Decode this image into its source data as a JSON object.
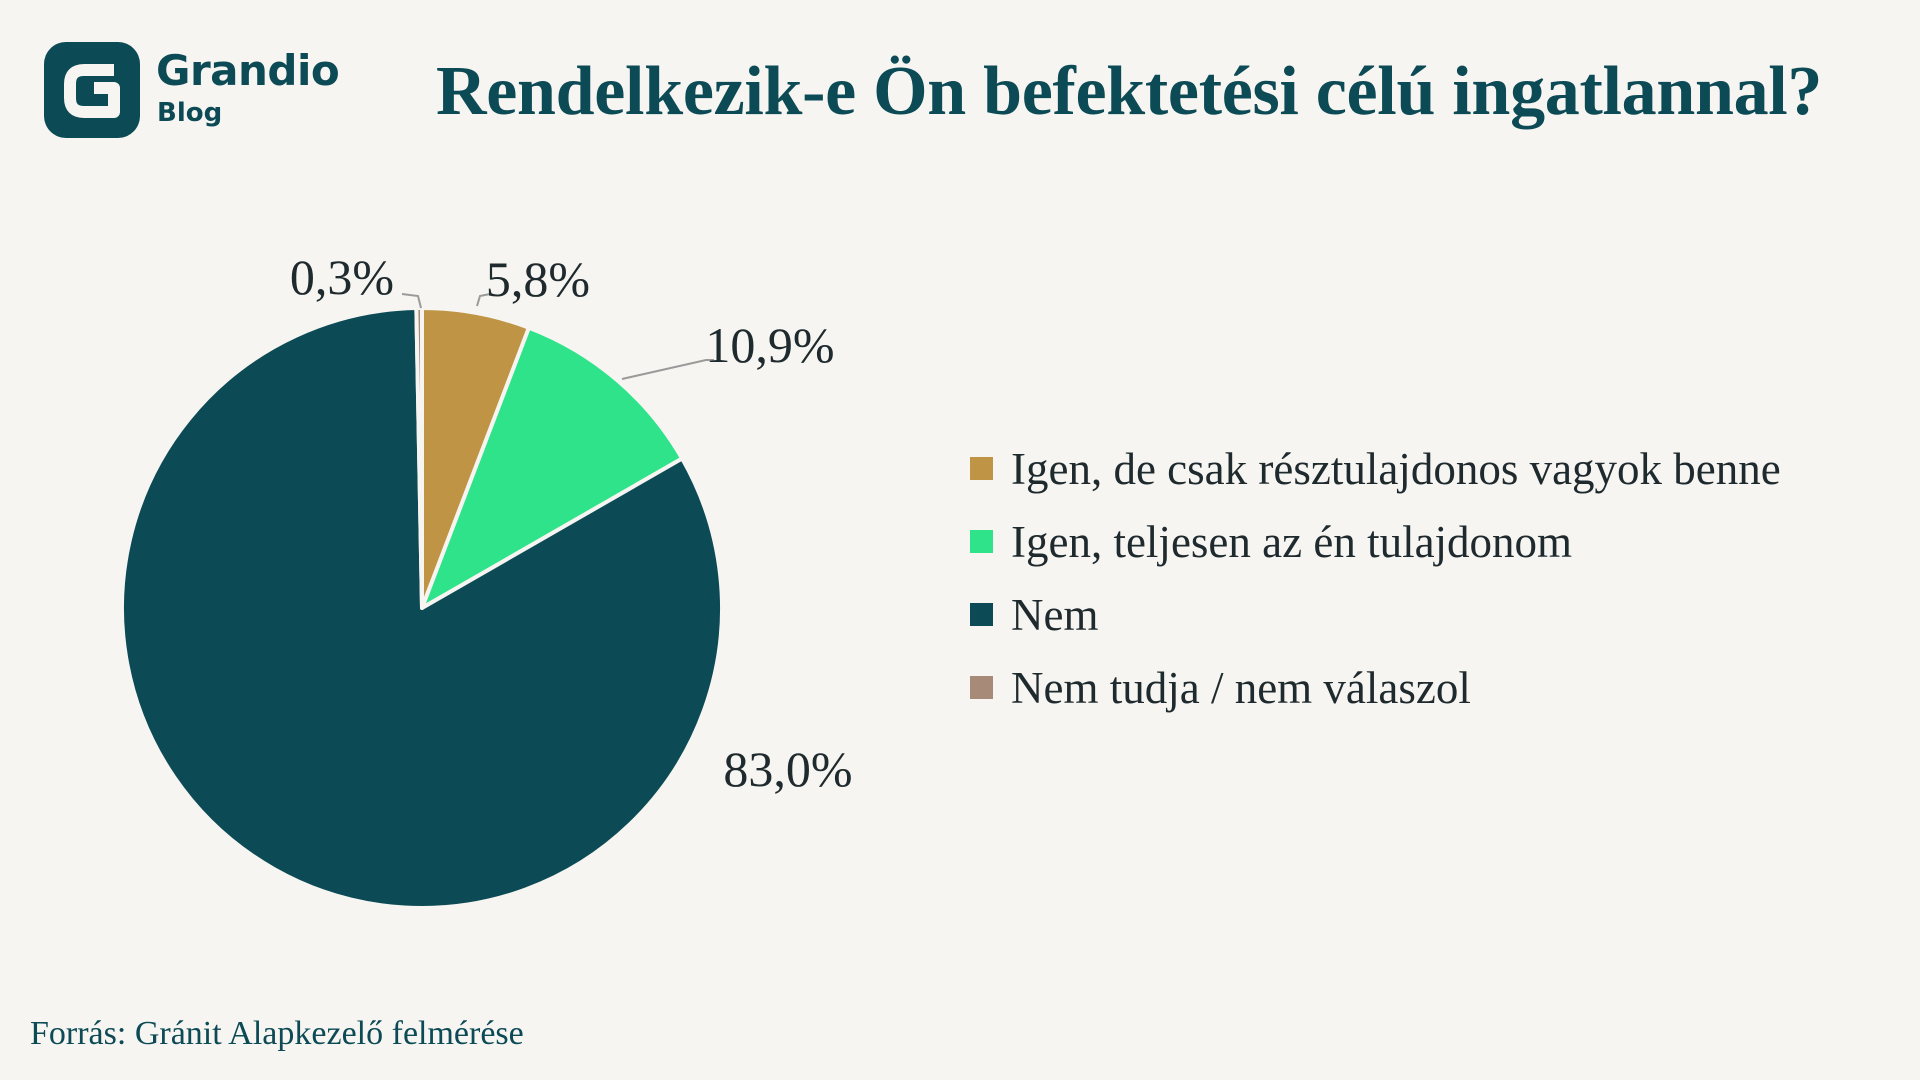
{
  "brand": {
    "name": "Grandio",
    "sub": "Blog",
    "color": "#0c4a55"
  },
  "title": "Rendelkezik-e Ön befektetési célú ingatlannal?",
  "source": "Forrás: Gránit Alapkezelő felmérése",
  "chart_data": {
    "type": "pie",
    "title": "Rendelkezik-e Ön befektetési célú ingatlannal?",
    "start_angle_deg": 0,
    "direction": "clockwise",
    "legend_position": "right",
    "series": [
      {
        "label": "Igen, de csak résztulajdonos vagyok benne",
        "value": 5.8,
        "display": "5,8%",
        "color": "#bf9545"
      },
      {
        "label": "Igen, teljesen az én tulajdonom",
        "value": 10.9,
        "display": "10,9%",
        "color": "#2ee38a"
      },
      {
        "label": "Nem",
        "value": 83.0,
        "display": "83,0%",
        "color": "#0c4a55"
      },
      {
        "label": "Nem tudja / nem válaszol",
        "value": 0.3,
        "display": "0,3%",
        "color": "#a88a78"
      }
    ]
  }
}
